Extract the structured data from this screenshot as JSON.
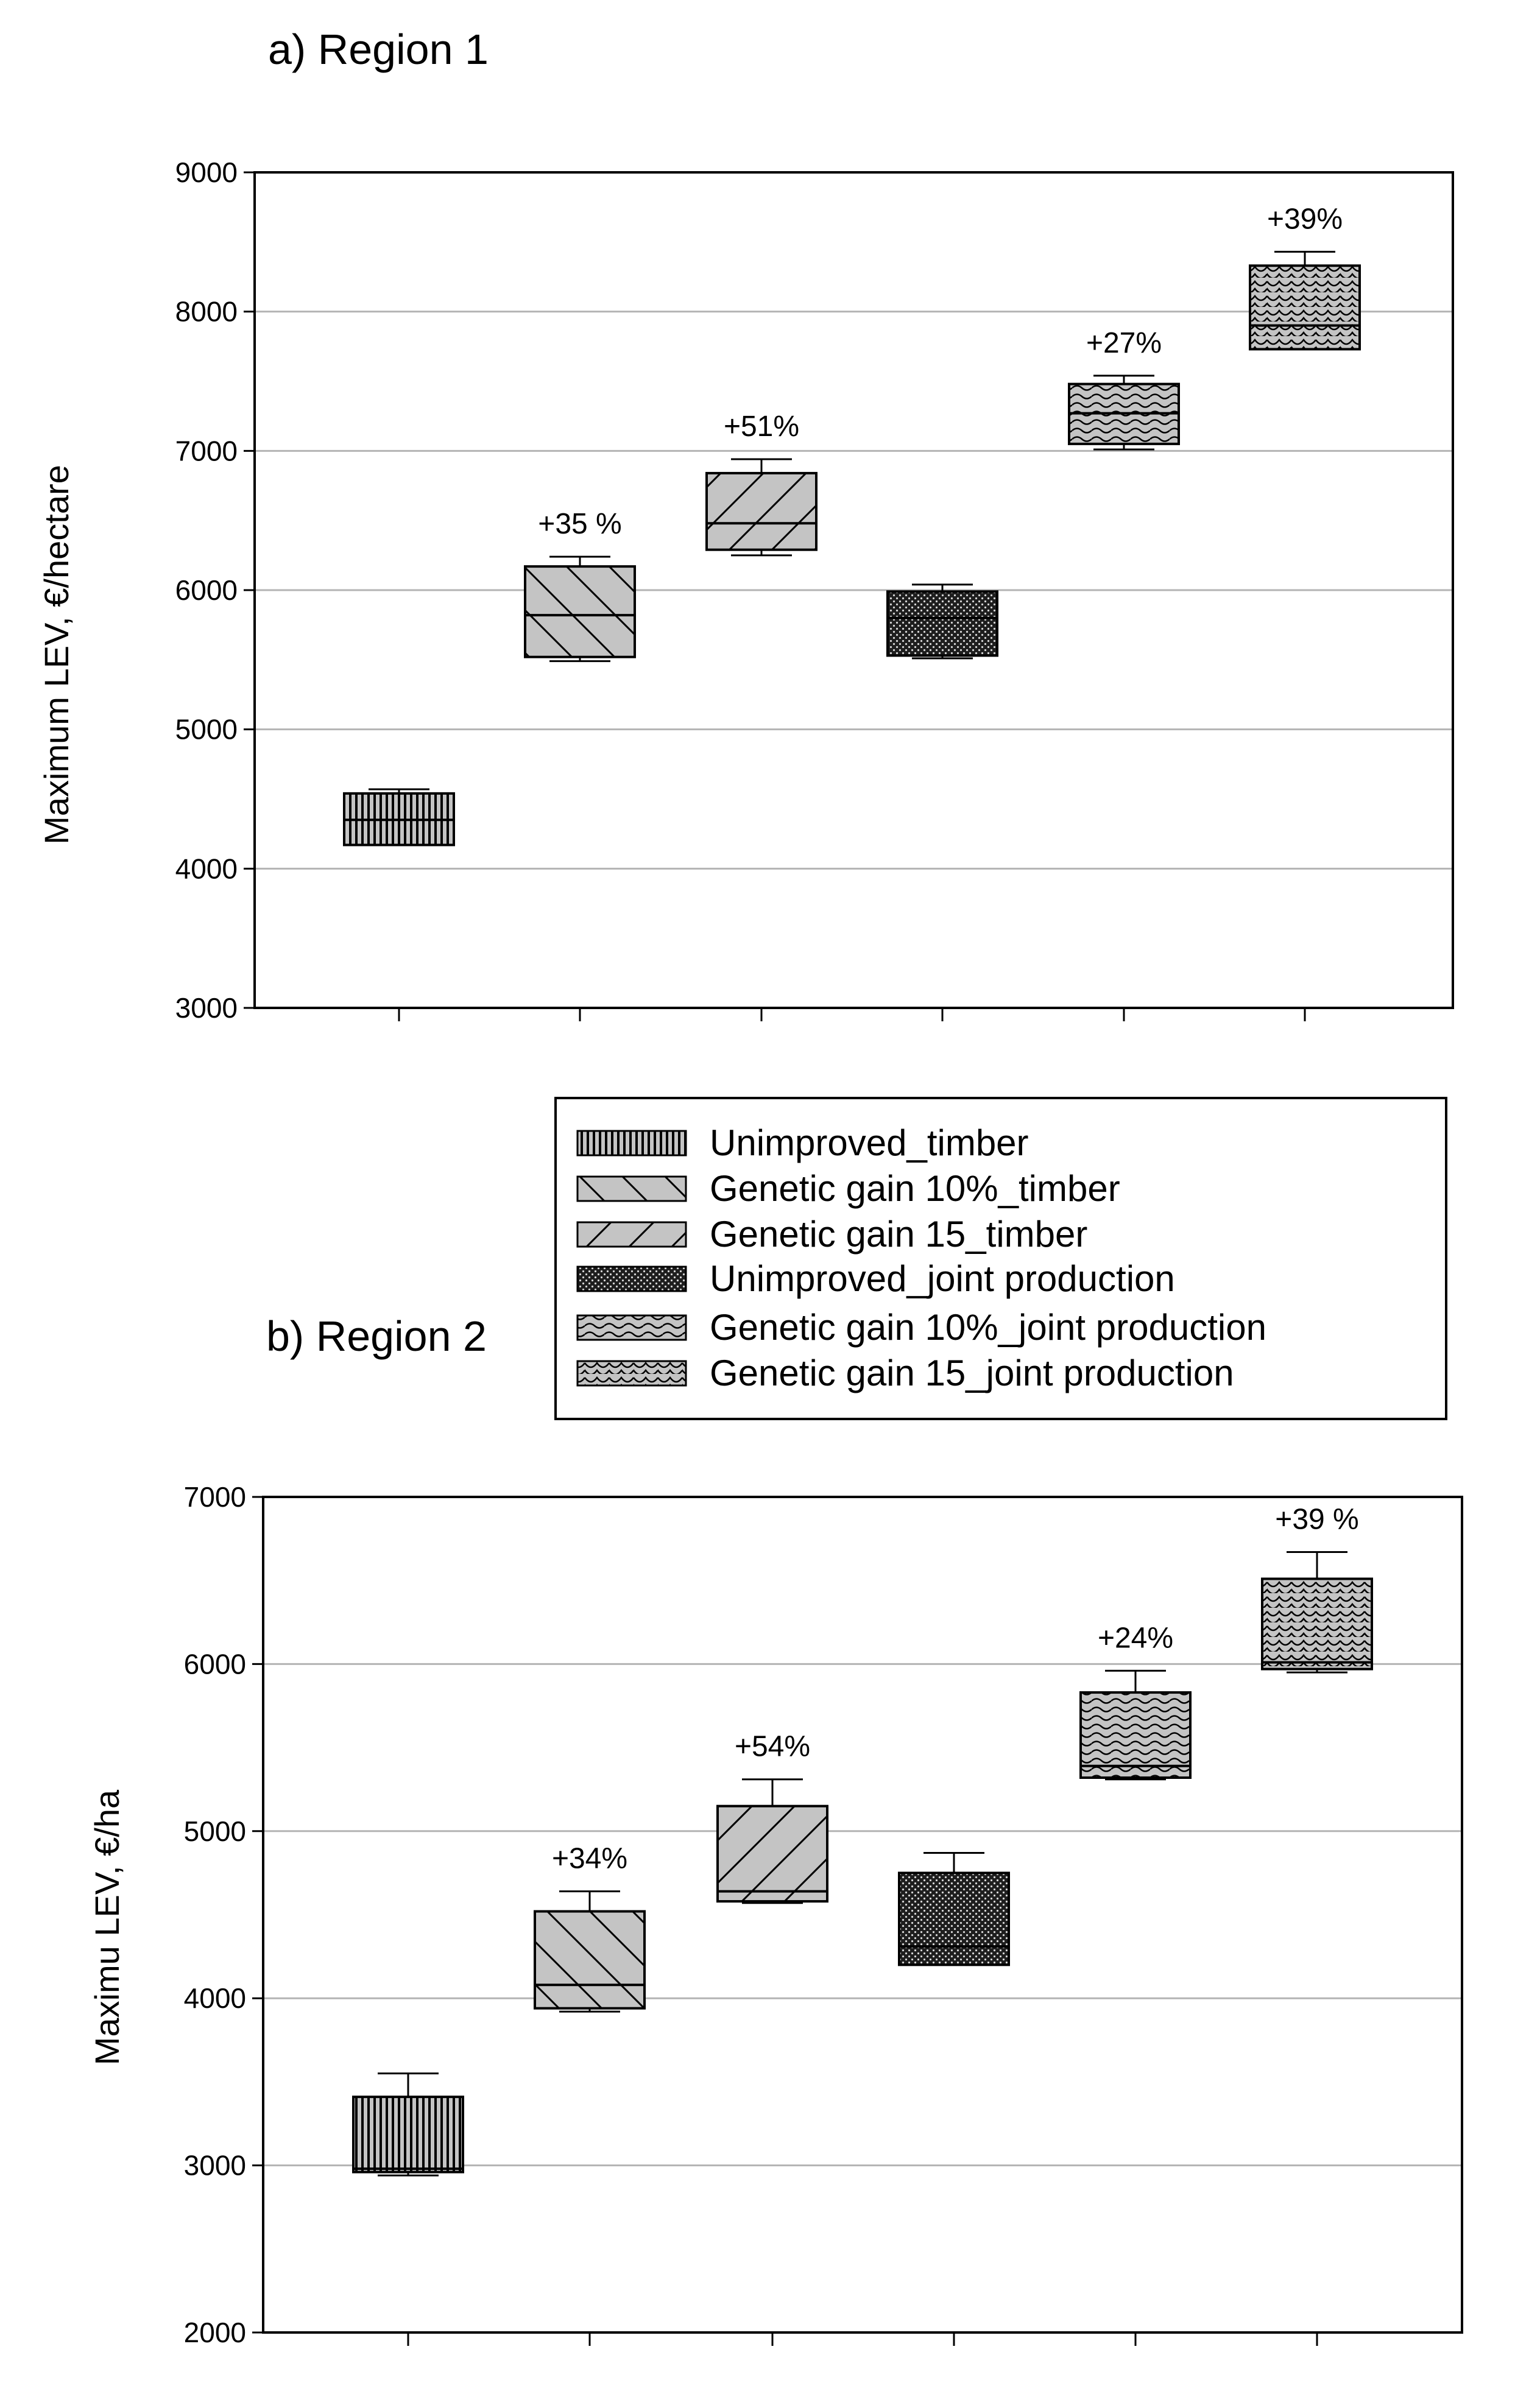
{
  "chart_data": [
    {
      "type": "box",
      "title": "a) Region 1",
      "ylabel": "Maximum LEV, €/hectare",
      "ylim": [
        3000,
        9000
      ],
      "yticks": [
        3000,
        4000,
        5000,
        6000,
        7000,
        8000,
        9000
      ],
      "ytick_labels": [
        "3000",
        "4000",
        "5000",
        "6000",
        "7000",
        "8000",
        "9000"
      ],
      "grid": true,
      "series": [
        {
          "name": "Unimproved_timber",
          "q1": 4170,
          "median": 4350,
          "q3": 4540,
          "whisker_low": 4170,
          "whisker_high": 4570,
          "annotation": ""
        },
        {
          "name": "Genetic gain 10%_timber",
          "q1": 5520,
          "median": 5820,
          "q3": 6170,
          "whisker_low": 5490,
          "whisker_high": 6240,
          "annotation": "+35 %"
        },
        {
          "name": "Genetic gain 15_timber",
          "q1": 6290,
          "median": 6480,
          "q3": 6840,
          "whisker_low": 6250,
          "whisker_high": 6940,
          "annotation": "+51%"
        },
        {
          "name": "Unimproved_joint production",
          "q1": 5530,
          "median": 5800,
          "q3": 5990,
          "whisker_low": 5510,
          "whisker_high": 6040,
          "annotation": ""
        },
        {
          "name": "Genetic gain 10%_joint production",
          "q1": 7050,
          "median": 7270,
          "q3": 7480,
          "whisker_low": 7010,
          "whisker_high": 7540,
          "annotation": "+27%"
        },
        {
          "name": "Genetic gain 15_joint production",
          "q1": 7730,
          "median": 7900,
          "q3": 8330,
          "whisker_low": 7730,
          "whisker_high": 8430,
          "annotation": "+39%"
        }
      ]
    },
    {
      "type": "box",
      "title": "b) Region 2",
      "ylabel": "Maximu LEV, €/ha",
      "ylim": [
        2000,
        7000
      ],
      "yticks": [
        2000,
        3000,
        4000,
        5000,
        6000,
        7000
      ],
      "ytick_labels": [
        "2000",
        "3000",
        "4000",
        "5000",
        "6000",
        "7000"
      ],
      "grid": true,
      "series": [
        {
          "name": "Unimproved_timber",
          "q1": 2960,
          "median": 2980,
          "q3": 3410,
          "whisker_low": 2940,
          "whisker_high": 3550,
          "annotation": ""
        },
        {
          "name": "Genetic gain 10%_timber",
          "q1": 3940,
          "median": 4080,
          "q3": 4520,
          "whisker_low": 3920,
          "whisker_high": 4640,
          "annotation": "+34%"
        },
        {
          "name": "Genetic gain 15_timber",
          "q1": 4580,
          "median": 4640,
          "q3": 5150,
          "whisker_low": 4570,
          "whisker_high": 5310,
          "annotation": "+54%"
        },
        {
          "name": "Unimproved_joint production",
          "q1": 4200,
          "median": 4310,
          "q3": 4750,
          "whisker_low": 4200,
          "whisker_high": 4870,
          "annotation": ""
        },
        {
          "name": "Genetic gain 10%_joint production",
          "q1": 5320,
          "median": 5390,
          "q3": 5830,
          "whisker_low": 5310,
          "whisker_high": 5960,
          "annotation": "+24%"
        },
        {
          "name": "Genetic gain 15_joint production",
          "q1": 5970,
          "median": 6010,
          "q3": 6510,
          "whisker_low": 5950,
          "whisker_high": 6670,
          "annotation": "+39 %"
        }
      ]
    }
  ],
  "legend": {
    "placement": "between panels, right",
    "entries": [
      {
        "label": "Unimproved_timber",
        "pattern": "vertical-lines"
      },
      {
        "label": "Genetic gain 10%_timber",
        "pattern": "back-diagonal"
      },
      {
        "label": "Genetic gain 15_timber",
        "pattern": "forward-diagonal"
      },
      {
        "label": "Unimproved_joint production",
        "pattern": "dense-dots"
      },
      {
        "label": "Genetic gain 10%_joint production",
        "pattern": "waves"
      },
      {
        "label": "Genetic gain 15_joint production",
        "pattern": "scallops"
      }
    ]
  }
}
